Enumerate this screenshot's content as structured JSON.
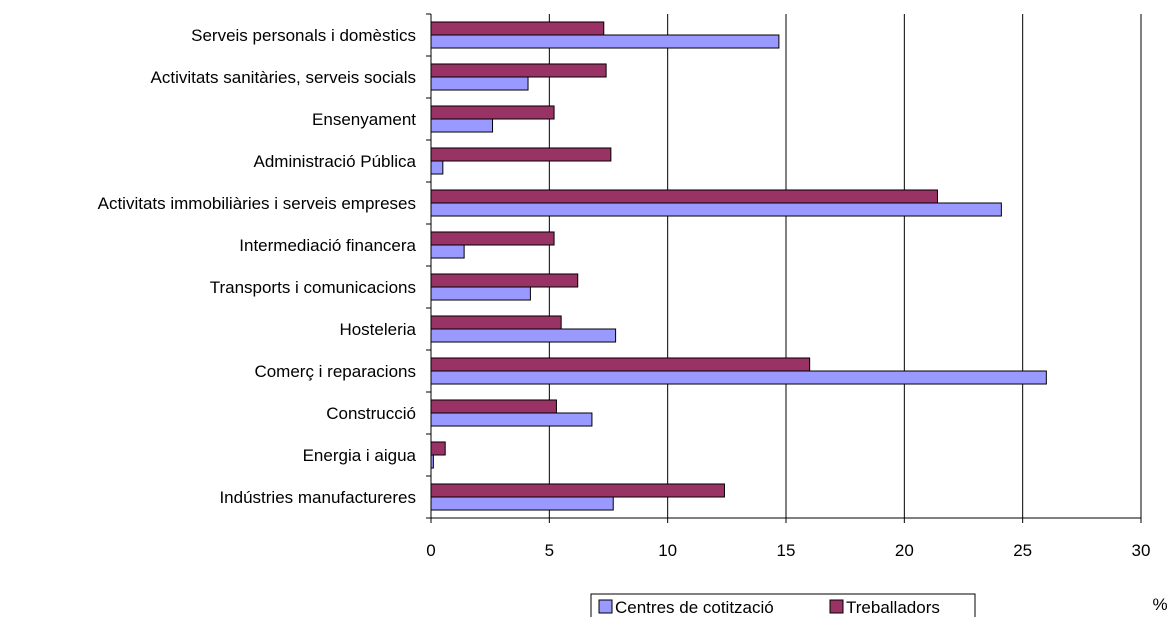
{
  "chart_data": {
    "type": "bar",
    "orientation": "horizontal",
    "categories": [
      "Serveis personals i domèstics",
      "Activitats sanitàries, serveis socials",
      "Ensenyament",
      "Administració Pública",
      "Activitats immobiliàries i serveis empreses",
      "Intermediació financera",
      "Transports i comunicacions",
      "Hosteleria",
      "Comerç i reparacions",
      "Construcció",
      "Energia i aigua",
      "Indústries manufactureres"
    ],
    "series": [
      {
        "name": "Centres de cotització",
        "color": "#9999ff",
        "values": [
          14.7,
          4.1,
          2.6,
          0.5,
          24.1,
          1.4,
          4.2,
          7.8,
          26.0,
          6.8,
          0.1,
          7.7
        ]
      },
      {
        "name": "Treballadors",
        "color": "#993366",
        "values": [
          7.3,
          7.4,
          5.2,
          7.6,
          21.4,
          5.2,
          6.2,
          5.5,
          16.0,
          5.3,
          0.6,
          12.4
        ]
      }
    ],
    "x_ticks": [
      0,
      5,
      10,
      15,
      20,
      25,
      30
    ],
    "xlim": [
      0,
      30
    ],
    "xlabel": "%",
    "title": "",
    "grid": true,
    "legend_position": "bottom"
  }
}
